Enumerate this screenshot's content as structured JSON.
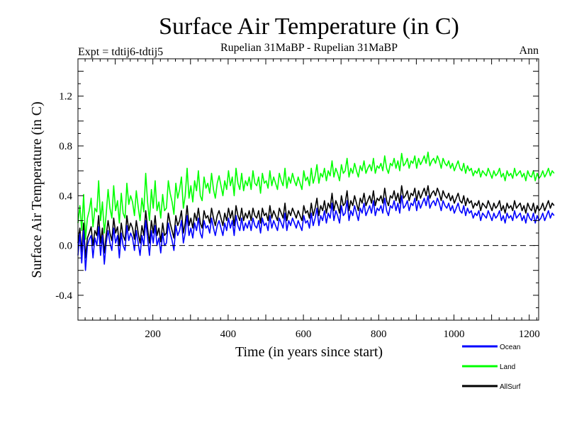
{
  "chart_data": {
    "type": "line",
    "title": "Surface Air Temperature (in C)",
    "subtitle_left": "Expt = tdtij6-tdtij5",
    "subtitle_center": "Rupelian  31MaBP - Rupelian  31MaBP",
    "subtitle_right": "Ann",
    "xlabel": "Time (in years since start)",
    "ylabel": "Surface Air Temperature (in C)",
    "xlim": [
      1,
      1225
    ],
    "ylim": [
      -0.6,
      1.5
    ],
    "xticks": [
      200,
      400,
      600,
      800,
      1000,
      1200
    ],
    "xtick_labels": [
      "200",
      "400",
      "600",
      "800",
      "1000",
      "1200"
    ],
    "yticks": [
      -0.4,
      0.0,
      0.4,
      0.8,
      1.2
    ],
    "ytick_labels": [
      "-0.4",
      "0.0",
      "0.4",
      "0.8",
      "1.2"
    ],
    "reference_line": 0.0,
    "x_start": 1,
    "x_step": 5,
    "series": [
      {
        "name": "Land",
        "color": "#00ff00",
        "values": [
          0.18,
          0.32,
          0.12,
          0.41,
          0.05,
          0.22,
          0.28,
          0.38,
          0.15,
          0.3,
          0.27,
          0.52,
          0.2,
          0.35,
          0.1,
          0.25,
          0.45,
          0.3,
          0.22,
          0.48,
          0.28,
          0.36,
          0.18,
          0.42,
          0.26,
          0.22,
          0.5,
          0.33,
          0.4,
          0.35,
          0.24,
          0.44,
          0.31,
          0.2,
          0.38,
          0.27,
          0.58,
          0.35,
          0.2,
          0.45,
          0.3,
          0.52,
          0.28,
          0.35,
          0.22,
          0.41,
          0.28,
          0.3,
          0.52,
          0.42,
          0.35,
          0.25,
          0.5,
          0.38,
          0.45,
          0.55,
          0.3,
          0.4,
          0.62,
          0.38,
          0.48,
          0.35,
          0.52,
          0.44,
          0.6,
          0.4,
          0.36,
          0.55,
          0.46,
          0.5,
          0.42,
          0.58,
          0.45,
          0.38,
          0.5,
          0.56,
          0.48,
          0.4,
          0.52,
          0.45,
          0.6,
          0.48,
          0.55,
          0.4,
          0.62,
          0.5,
          0.45,
          0.58,
          0.44,
          0.52,
          0.48,
          0.55,
          0.45,
          0.6,
          0.5,
          0.48,
          0.55,
          0.42,
          0.58,
          0.5,
          0.52,
          0.46,
          0.6,
          0.48,
          0.55,
          0.5,
          0.45,
          0.58,
          0.52,
          0.48,
          0.62,
          0.46,
          0.55,
          0.5,
          0.58,
          0.52,
          0.48,
          0.55,
          0.5,
          0.45,
          0.6,
          0.52,
          0.55,
          0.48,
          0.62,
          0.5,
          0.56,
          0.65,
          0.5,
          0.58,
          0.55,
          0.62,
          0.52,
          0.6,
          0.56,
          0.68,
          0.55,
          0.62,
          0.58,
          0.52,
          0.65,
          0.58,
          0.6,
          0.7,
          0.55,
          0.62,
          0.58,
          0.66,
          0.6,
          0.55,
          0.64,
          0.6,
          0.68,
          0.58,
          0.62,
          0.65,
          0.6,
          0.7,
          0.58,
          0.64,
          0.62,
          0.66,
          0.6,
          0.72,
          0.62,
          0.58,
          0.66,
          0.64,
          0.7,
          0.62,
          0.68,
          0.6,
          0.74,
          0.64,
          0.66,
          0.7,
          0.62,
          0.68,
          0.66,
          0.72,
          0.62,
          0.7,
          0.65,
          0.68,
          0.72,
          0.66,
          0.75,
          0.64,
          0.68,
          0.7,
          0.66,
          0.72,
          0.68,
          0.62,
          0.7,
          0.66,
          0.64,
          0.68,
          0.62,
          0.66,
          0.6,
          0.64,
          0.68,
          0.62,
          0.6,
          0.66,
          0.58,
          0.64,
          0.6,
          0.62,
          0.56,
          0.6,
          0.58,
          0.62,
          0.55,
          0.6,
          0.58,
          0.56,
          0.62,
          0.58,
          0.54,
          0.6,
          0.56,
          0.58,
          0.62,
          0.55,
          0.58,
          0.52,
          0.6,
          0.56,
          0.58,
          0.54,
          0.62,
          0.56,
          0.58,
          0.6,
          0.55,
          0.58,
          0.52,
          0.6,
          0.56,
          0.55,
          0.6,
          0.52,
          0.58,
          0.54,
          0.56,
          0.6,
          0.55,
          0.58,
          0.62,
          0.56,
          0.6,
          0.58
        ]
      },
      {
        "name": "AllSurf",
        "color": "#000000",
        "values": [
          0.02,
          0.14,
          -0.05,
          0.18,
          -0.1,
          0.06,
          0.1,
          0.15,
          0.0,
          0.12,
          0.08,
          0.24,
          0.02,
          0.14,
          -0.06,
          0.08,
          0.2,
          0.1,
          0.04,
          0.22,
          0.1,
          0.15,
          0.0,
          0.18,
          0.08,
          0.04,
          0.24,
          0.12,
          0.18,
          0.14,
          0.05,
          0.2,
          0.1,
          0.02,
          0.16,
          0.08,
          0.28,
          0.14,
          0.02,
          0.2,
          0.1,
          0.24,
          0.08,
          0.14,
          0.03,
          0.18,
          0.08,
          0.1,
          0.26,
          0.18,
          0.12,
          0.06,
          0.24,
          0.16,
          0.2,
          0.28,
          0.1,
          0.18,
          0.32,
          0.16,
          0.22,
          0.14,
          0.26,
          0.2,
          0.3,
          0.18,
          0.14,
          0.28,
          0.22,
          0.24,
          0.18,
          0.3,
          0.22,
          0.16,
          0.24,
          0.28,
          0.22,
          0.16,
          0.26,
          0.2,
          0.3,
          0.22,
          0.28,
          0.16,
          0.32,
          0.24,
          0.2,
          0.3,
          0.2,
          0.26,
          0.22,
          0.28,
          0.2,
          0.3,
          0.24,
          0.22,
          0.28,
          0.18,
          0.3,
          0.24,
          0.26,
          0.2,
          0.32,
          0.22,
          0.28,
          0.24,
          0.2,
          0.3,
          0.26,
          0.22,
          0.34,
          0.2,
          0.28,
          0.24,
          0.3,
          0.26,
          0.22,
          0.28,
          0.24,
          0.2,
          0.32,
          0.26,
          0.28,
          0.22,
          0.34,
          0.24,
          0.3,
          0.38,
          0.24,
          0.32,
          0.28,
          0.36,
          0.26,
          0.34,
          0.3,
          0.42,
          0.28,
          0.36,
          0.32,
          0.26,
          0.4,
          0.32,
          0.34,
          0.44,
          0.28,
          0.36,
          0.32,
          0.4,
          0.34,
          0.28,
          0.38,
          0.34,
          0.42,
          0.32,
          0.36,
          0.4,
          0.34,
          0.44,
          0.32,
          0.38,
          0.36,
          0.4,
          0.34,
          0.46,
          0.36,
          0.32,
          0.4,
          0.38,
          0.44,
          0.36,
          0.42,
          0.34,
          0.48,
          0.38,
          0.4,
          0.44,
          0.36,
          0.42,
          0.4,
          0.46,
          0.36,
          0.44,
          0.38,
          0.42,
          0.46,
          0.4,
          0.48,
          0.38,
          0.42,
          0.44,
          0.4,
          0.46,
          0.42,
          0.36,
          0.44,
          0.4,
          0.38,
          0.42,
          0.36,
          0.4,
          0.34,
          0.38,
          0.42,
          0.36,
          0.34,
          0.4,
          0.32,
          0.38,
          0.34,
          0.36,
          0.3,
          0.34,
          0.32,
          0.36,
          0.28,
          0.34,
          0.32,
          0.3,
          0.36,
          0.32,
          0.28,
          0.34,
          0.3,
          0.32,
          0.36,
          0.28,
          0.32,
          0.26,
          0.34,
          0.3,
          0.32,
          0.28,
          0.36,
          0.3,
          0.32,
          0.34,
          0.28,
          0.32,
          0.26,
          0.34,
          0.3,
          0.28,
          0.34,
          0.26,
          0.32,
          0.28,
          0.3,
          0.34,
          0.28,
          0.32,
          0.36,
          0.3,
          0.34,
          0.32
        ]
      },
      {
        "name": "Ocean",
        "color": "#0000ff",
        "values": [
          -0.08,
          0.1,
          -0.14,
          0.12,
          -0.2,
          0.0,
          0.05,
          0.08,
          -0.1,
          0.06,
          0.0,
          0.15,
          -0.08,
          0.08,
          -0.15,
          0.02,
          0.12,
          0.02,
          -0.04,
          0.14,
          0.02,
          0.08,
          -0.1,
          0.1,
          0.0,
          -0.04,
          0.16,
          0.04,
          0.1,
          0.06,
          -0.04,
          0.12,
          0.02,
          -0.08,
          0.08,
          0.0,
          0.2,
          0.06,
          -0.08,
          0.12,
          0.02,
          0.16,
          0.0,
          0.06,
          -0.06,
          0.1,
          0.0,
          0.02,
          0.18,
          0.1,
          0.04,
          -0.04,
          0.16,
          0.08,
          0.12,
          0.2,
          0.02,
          0.1,
          0.24,
          0.08,
          0.14,
          0.06,
          0.18,
          0.12,
          0.22,
          0.1,
          0.06,
          0.2,
          0.14,
          0.16,
          0.1,
          0.22,
          0.14,
          0.08,
          0.16,
          0.2,
          0.14,
          0.08,
          0.18,
          0.12,
          0.22,
          0.14,
          0.2,
          0.08,
          0.24,
          0.16,
          0.12,
          0.22,
          0.12,
          0.18,
          0.14,
          0.2,
          0.12,
          0.22,
          0.16,
          0.14,
          0.2,
          0.1,
          0.22,
          0.16,
          0.18,
          0.12,
          0.24,
          0.14,
          0.2,
          0.16,
          0.12,
          0.22,
          0.18,
          0.14,
          0.26,
          0.12,
          0.2,
          0.16,
          0.22,
          0.18,
          0.14,
          0.2,
          0.16,
          0.12,
          0.24,
          0.18,
          0.2,
          0.14,
          0.26,
          0.16,
          0.22,
          0.3,
          0.16,
          0.24,
          0.2,
          0.28,
          0.18,
          0.26,
          0.22,
          0.34,
          0.2,
          0.28,
          0.24,
          0.18,
          0.32,
          0.24,
          0.26,
          0.36,
          0.2,
          0.28,
          0.24,
          0.32,
          0.26,
          0.2,
          0.3,
          0.26,
          0.34,
          0.24,
          0.28,
          0.32,
          0.26,
          0.36,
          0.24,
          0.3,
          0.28,
          0.32,
          0.26,
          0.38,
          0.28,
          0.24,
          0.32,
          0.3,
          0.36,
          0.28,
          0.34,
          0.26,
          0.4,
          0.3,
          0.32,
          0.36,
          0.28,
          0.34,
          0.32,
          0.38,
          0.28,
          0.36,
          0.3,
          0.34,
          0.38,
          0.32,
          0.4,
          0.3,
          0.34,
          0.36,
          0.32,
          0.38,
          0.34,
          0.28,
          0.36,
          0.32,
          0.3,
          0.34,
          0.28,
          0.32,
          0.26,
          0.3,
          0.34,
          0.28,
          0.26,
          0.32,
          0.24,
          0.3,
          0.26,
          0.28,
          0.22,
          0.26,
          0.24,
          0.28,
          0.2,
          0.26,
          0.24,
          0.22,
          0.28,
          0.24,
          0.2,
          0.26,
          0.22,
          0.24,
          0.28,
          0.2,
          0.24,
          0.18,
          0.26,
          0.22,
          0.24,
          0.2,
          0.28,
          0.22,
          0.24,
          0.26,
          0.2,
          0.24,
          0.18,
          0.26,
          0.22,
          0.2,
          0.26,
          0.18,
          0.24,
          0.2,
          0.22,
          0.26,
          0.2,
          0.24,
          0.28,
          0.22,
          0.26,
          0.24
        ]
      }
    ],
    "legend": [
      {
        "label": "Ocean",
        "color": "#0000ff"
      },
      {
        "label": "Land",
        "color": "#00ff00"
      },
      {
        "label": "AllSurf",
        "color": "#000000"
      }
    ],
    "legend_position": "bottom-right"
  }
}
